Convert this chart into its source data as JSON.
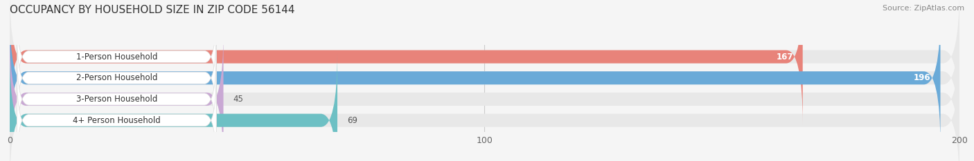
{
  "title": "OCCUPANCY BY HOUSEHOLD SIZE IN ZIP CODE 56144",
  "source": "Source: ZipAtlas.com",
  "categories": [
    "1-Person Household",
    "2-Person Household",
    "3-Person Household",
    "4+ Person Household"
  ],
  "values": [
    167,
    196,
    45,
    69
  ],
  "bar_colors": [
    "#E8837A",
    "#6AAAD8",
    "#C9A8D4",
    "#6DC0C4"
  ],
  "xlim": [
    0,
    200
  ],
  "xticks": [
    0,
    100,
    200
  ],
  "bg_color": "#f5f5f5",
  "bar_bg_color": "#e8e8e8",
  "title_fontsize": 11,
  "source_fontsize": 8,
  "bar_label_fontsize": 8.5,
  "value_fontsize": 8.5,
  "figsize": [
    14.06,
    2.33
  ],
  "dpi": 100
}
